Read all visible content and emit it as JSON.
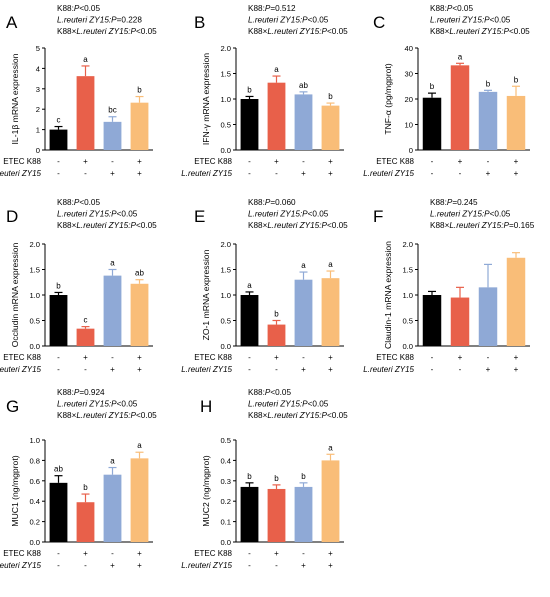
{
  "colors": {
    "ctrl": "#000000",
    "etec": "#e8604a",
    "zy15": "#8fa9d6",
    "both": "#f9bd78"
  },
  "chart_data": [
    {
      "type": "bar",
      "panel": "A",
      "stats": [
        {
          "text": "K88:",
          "italic_text": "P",
          "tail": "<0.05"
        },
        {
          "text": "",
          "italic_text": "L.reuteri ZY15:P",
          "tail": "=0.228"
        },
        {
          "text": "K88×",
          "italic_text": "L.reuteri ZY15:P",
          "tail": "<0.05"
        }
      ],
      "ylabel": "IL-1β mRNA expression",
      "ylim": [
        0,
        5
      ],
      "yticks": [
        "0",
        "1",
        "2",
        "3",
        "4",
        "5"
      ],
      "values": [
        1.0,
        3.62,
        1.38,
        2.32
      ],
      "errors": [
        0.15,
        0.5,
        0.25,
        0.3
      ],
      "letters": [
        "c",
        "a",
        "bc",
        "b"
      ],
      "row_labels": [
        "ETEC K88",
        "L.reuteri ZY15"
      ],
      "row1_signs": [
        "-",
        "+",
        "-",
        "+"
      ],
      "row2_signs": [
        "-",
        "-",
        "+",
        "+"
      ]
    },
    {
      "type": "bar",
      "panel": "B",
      "stats": [
        {
          "text": "K88:",
          "italic_text": "P",
          "tail": "=0.512"
        },
        {
          "text": "",
          "italic_text": "L.reuteri ZY15:P",
          "tail": "<0.05"
        },
        {
          "text": "K88×",
          "italic_text": "L.reuteri ZY15:P",
          "tail": "<0.05"
        }
      ],
      "ylabel": "IFN-γ mRNA expression",
      "ylim": [
        0,
        2.0
      ],
      "yticks": [
        "0.0",
        "0.5",
        "1.0",
        "1.5",
        "2.0"
      ],
      "values": [
        1.0,
        1.32,
        1.09,
        0.87
      ],
      "errors": [
        0.05,
        0.13,
        0.05,
        0.05
      ],
      "letters": [
        "b",
        "a",
        "ab",
        "b"
      ],
      "row_labels": [
        "ETEC K88",
        "L.reuteri ZY15"
      ],
      "row1_signs": [
        "-",
        "+",
        "-",
        "+"
      ],
      "row2_signs": [
        "-",
        "-",
        "+",
        "+"
      ]
    },
    {
      "type": "bar",
      "panel": "C",
      "stats": [
        {
          "text": "K88:",
          "italic_text": "P",
          "tail": "<0.05"
        },
        {
          "text": "",
          "italic_text": "L.reuteri ZY15:P",
          "tail": "<0.05"
        },
        {
          "text": "K88×",
          "italic_text": "L.reuteri ZY15:P",
          "tail": "<0.05"
        }
      ],
      "ylabel": "TNF-α (pg/mgprot)",
      "ylim": [
        0,
        40
      ],
      "yticks": [
        "0",
        "10",
        "20",
        "30",
        "40"
      ],
      "values": [
        20.5,
        33.2,
        22.8,
        21.2
      ],
      "errors": [
        1.8,
        0.8,
        0.6,
        3.8
      ],
      "letters": [
        "b",
        "a",
        "b",
        "b"
      ],
      "row_labels": [
        "ETEC K88",
        "L.reuteri ZY15"
      ],
      "row1_signs": [
        "-",
        "+",
        "-",
        "+"
      ],
      "row2_signs": [
        "-",
        "-",
        "+",
        "+"
      ]
    },
    {
      "type": "bar",
      "panel": "D",
      "stats": [
        {
          "text": "K88:",
          "italic_text": "P",
          "tail": "<0.05"
        },
        {
          "text": "",
          "italic_text": "L.reuteri ZY15:P",
          "tail": "<0.05"
        },
        {
          "text": "K88×",
          "italic_text": "L.reuteri ZY15:P",
          "tail": "<0.05"
        }
      ],
      "ylabel": "Occludin mRNA expression",
      "ylim": [
        0,
        2.0
      ],
      "yticks": [
        "0.0",
        "0.5",
        "1.0",
        "1.5",
        "2.0"
      ],
      "values": [
        1.0,
        0.34,
        1.38,
        1.22
      ],
      "errors": [
        0.05,
        0.04,
        0.12,
        0.08
      ],
      "letters": [
        "b",
        "c",
        "a",
        "ab"
      ],
      "row_labels": [
        "ETEC K88",
        "L.reuteri ZY15"
      ],
      "row1_signs": [
        "-",
        "+",
        "-",
        "+"
      ],
      "row2_signs": [
        "-",
        "-",
        "+",
        "+"
      ]
    },
    {
      "type": "bar",
      "panel": "E",
      "stats": [
        {
          "text": "K88:",
          "italic_text": "P",
          "tail": "=0.060"
        },
        {
          "text": "",
          "italic_text": "L.reuteri ZY15:P",
          "tail": "<0.05"
        },
        {
          "text": "K88×",
          "italic_text": "L.reuteri ZY15:P",
          "tail": "<0.05"
        }
      ],
      "ylabel": "ZO-1 mRNA expression",
      "ylim": [
        0,
        2.0
      ],
      "yticks": [
        "0.0",
        "0.5",
        "1.0",
        "1.5",
        "2.0"
      ],
      "values": [
        1.0,
        0.42,
        1.3,
        1.33
      ],
      "errors": [
        0.06,
        0.08,
        0.15,
        0.14
      ],
      "letters": [
        "a",
        "b",
        "a",
        "a"
      ],
      "row_labels": [
        "ETEC K88",
        "L.reuteri ZY15"
      ],
      "row1_signs": [
        "-",
        "+",
        "-",
        "+"
      ],
      "row2_signs": [
        "-",
        "-",
        "+",
        "+"
      ]
    },
    {
      "type": "bar",
      "panel": "F",
      "stats": [
        {
          "text": "K88:",
          "italic_text": "P",
          "tail": "=0.245"
        },
        {
          "text": "",
          "italic_text": "L.reuteri ZY15:P",
          "tail": "<0.05"
        },
        {
          "text": "K88×",
          "italic_text": "L.reuteri ZY15:P",
          "tail": "=0.165"
        }
      ],
      "ylabel": "Claudin-1 mRNA expression",
      "ylim": [
        0,
        2.0
      ],
      "yticks": [
        "0.0",
        "0.5",
        "1.0",
        "1.5",
        "2.0"
      ],
      "values": [
        1.0,
        0.95,
        1.15,
        1.73
      ],
      "errors": [
        0.07,
        0.2,
        0.45,
        0.1
      ],
      "letters": [
        "",
        "",
        "",
        ""
      ],
      "row_labels": [
        "ETEC K88",
        "L.reuteri ZY15"
      ],
      "row1_signs": [
        "-",
        "+",
        "-",
        "+"
      ],
      "row2_signs": [
        "-",
        "-",
        "+",
        "+"
      ]
    },
    {
      "type": "bar",
      "panel": "G",
      "stats": [
        {
          "text": "K88:",
          "italic_text": "P",
          "tail": "=0.924"
        },
        {
          "text": "",
          "italic_text": "L.reuteri ZY15:P",
          "tail": "<0.05"
        },
        {
          "text": "K88×",
          "italic_text": "L.reuteri ZY15:P",
          "tail": "<0.05"
        }
      ],
      "ylabel": "MUC1 (ng/mgprot)",
      "ylim": [
        0,
        1.0
      ],
      "yticks": [
        "0.0",
        "0.2",
        "0.4",
        "0.6",
        "0.8",
        "1.0"
      ],
      "values": [
        0.58,
        0.39,
        0.66,
        0.82
      ],
      "errors": [
        0.07,
        0.08,
        0.07,
        0.06
      ],
      "letters": [
        "ab",
        "b",
        "a",
        "a"
      ],
      "row_labels": [
        "ETEC K88",
        "L.reuteri ZY15"
      ],
      "row1_signs": [
        "-",
        "+",
        "-",
        "+"
      ],
      "row2_signs": [
        "-",
        "-",
        "+",
        "+"
      ]
    },
    {
      "type": "bar",
      "panel": "H",
      "stats": [
        {
          "text": "K88:",
          "italic_text": "P",
          "tail": "<0.05"
        },
        {
          "text": "",
          "italic_text": "L.reuteri ZY15:P",
          "tail": "<0.05"
        },
        {
          "text": "K88×",
          "italic_text": "L.reuteri ZY15:P",
          "tail": "<0.05"
        }
      ],
      "ylabel": "MUC2 (ng/mgprot)",
      "ylim": [
        0,
        0.5
      ],
      "yticks": [
        "0.0",
        "0.1",
        "0.2",
        "0.3",
        "0.4",
        "0.5"
      ],
      "values": [
        0.27,
        0.26,
        0.27,
        0.4
      ],
      "errors": [
        0.02,
        0.02,
        0.02,
        0.03
      ],
      "letters": [
        "b",
        "b",
        "b",
        "a"
      ],
      "row_labels": [
        "ETEC K88",
        "L.reuteri ZY15"
      ],
      "row1_signs": [
        "-",
        "+",
        "-",
        "+"
      ],
      "row2_signs": [
        "-",
        "-",
        "+",
        "+"
      ]
    }
  ]
}
